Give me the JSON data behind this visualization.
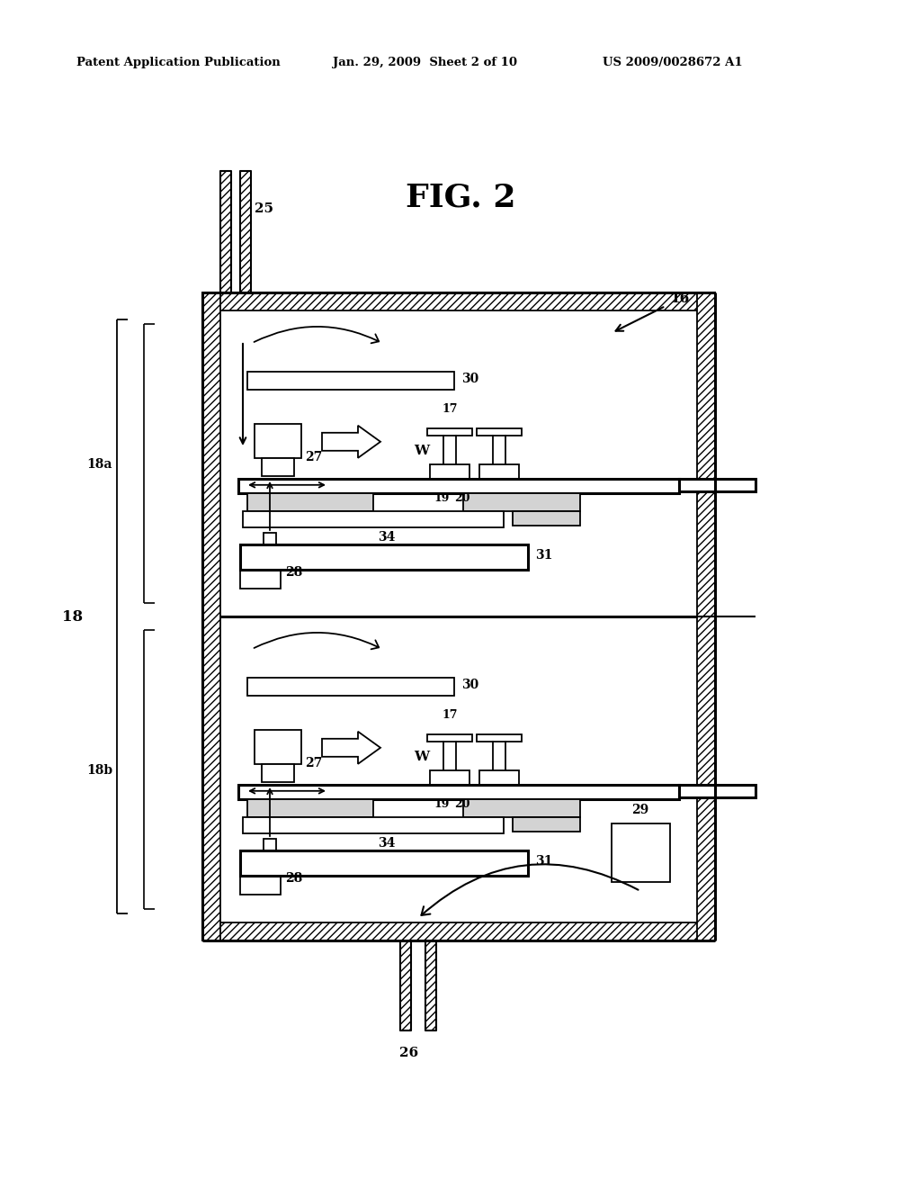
{
  "bg_color": "#ffffff",
  "header_left": "Patent Application Publication",
  "header_mid": "Jan. 29, 2009  Sheet 2 of 10",
  "header_right": "US 2009/0028672 A1",
  "fig_label": "FIG. 2"
}
